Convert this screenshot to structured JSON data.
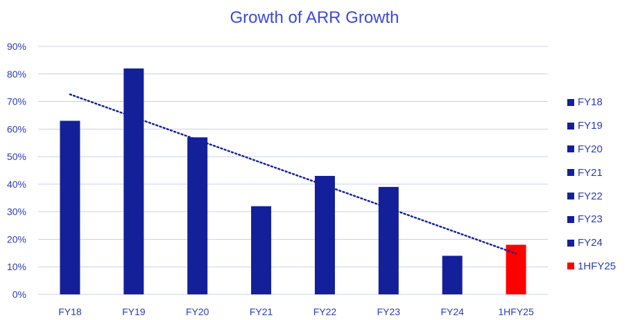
{
  "chart_data": {
    "type": "bar",
    "title": "Growth of ARR Growth",
    "xlabel": "",
    "ylabel": "",
    "categories": [
      "FY18",
      "FY19",
      "FY20",
      "FY21",
      "FY22",
      "FY23",
      "FY24",
      "1HFY25"
    ],
    "values": [
      63,
      82,
      57,
      32,
      43,
      39,
      14,
      18
    ],
    "bar_colors": [
      "#13209a",
      "#13209a",
      "#13209a",
      "#13209a",
      "#13209a",
      "#13209a",
      "#13209a",
      "#ff0000"
    ],
    "ylim": [
      0,
      90
    ],
    "yticks": [
      0,
      10,
      20,
      30,
      40,
      50,
      60,
      70,
      80,
      90
    ],
    "ytick_labels": [
      "0%",
      "10%",
      "20%",
      "30%",
      "40%",
      "50%",
      "60%",
      "70%",
      "80%",
      "90%"
    ],
    "trendline": {
      "type": "linear",
      "style": "dotted",
      "color": "#13209a",
      "start": 72.6,
      "end": 14.8
    },
    "grid": true,
    "legend_position": "right",
    "legend": [
      {
        "label": "FY18",
        "color": "#13209a"
      },
      {
        "label": "FY19",
        "color": "#13209a"
      },
      {
        "label": "FY20",
        "color": "#13209a"
      },
      {
        "label": "FY21",
        "color": "#13209a"
      },
      {
        "label": "FY22",
        "color": "#13209a"
      },
      {
        "label": "FY23",
        "color": "#13209a"
      },
      {
        "label": "FY24",
        "color": "#13209a"
      },
      {
        "label": "1HFY25",
        "color": "#ff0000"
      }
    ],
    "colors": {
      "title": "#3a49d8",
      "text": "#2b3bb5",
      "grid": "#c8d0ee",
      "axis": "#c8d0ee"
    }
  }
}
